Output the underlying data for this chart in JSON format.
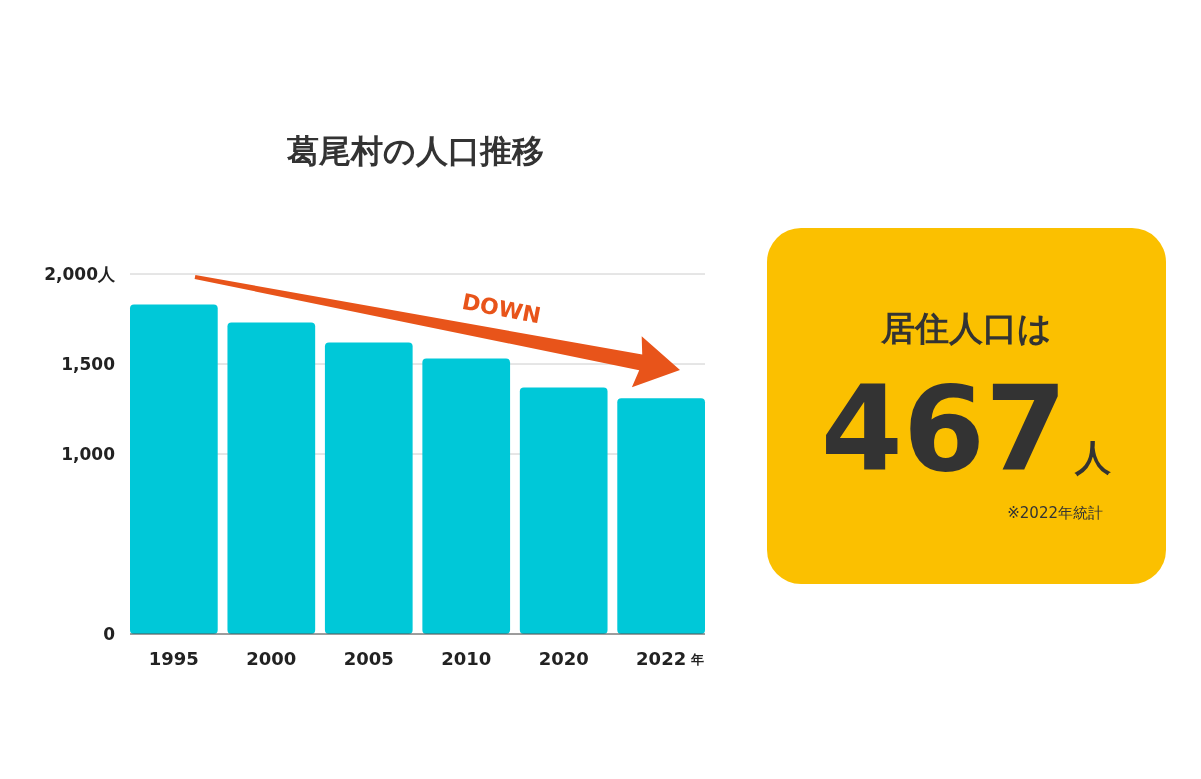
{
  "chart_data": [
    {
      "type": "bar",
      "title": "葛尾村の人口推移",
      "categories": [
        "1995",
        "2000",
        "2005",
        "2010",
        "2020",
        "2022"
      ],
      "values": [
        1830,
        1730,
        1620,
        1530,
        1370,
        1310
      ],
      "color": "#00c8d8",
      "xlabel": "年",
      "ylim": [
        0,
        2000
      ],
      "yticks": [
        0,
        {
          "value": 1000,
          "label": "1,000"
        },
        {
          "value": 1500,
          "label": "1,500"
        },
        {
          "value": 2000,
          "label": "2,000人"
        }
      ],
      "grid": "y",
      "annotations": [
        "DOWN"
      ]
    },
    {
      "type": "other",
      "title": "居住人口は",
      "color": "#fbc000",
      "annotations": [
        "467人",
        "※2022年統計"
      ]
    }
  ]
}
